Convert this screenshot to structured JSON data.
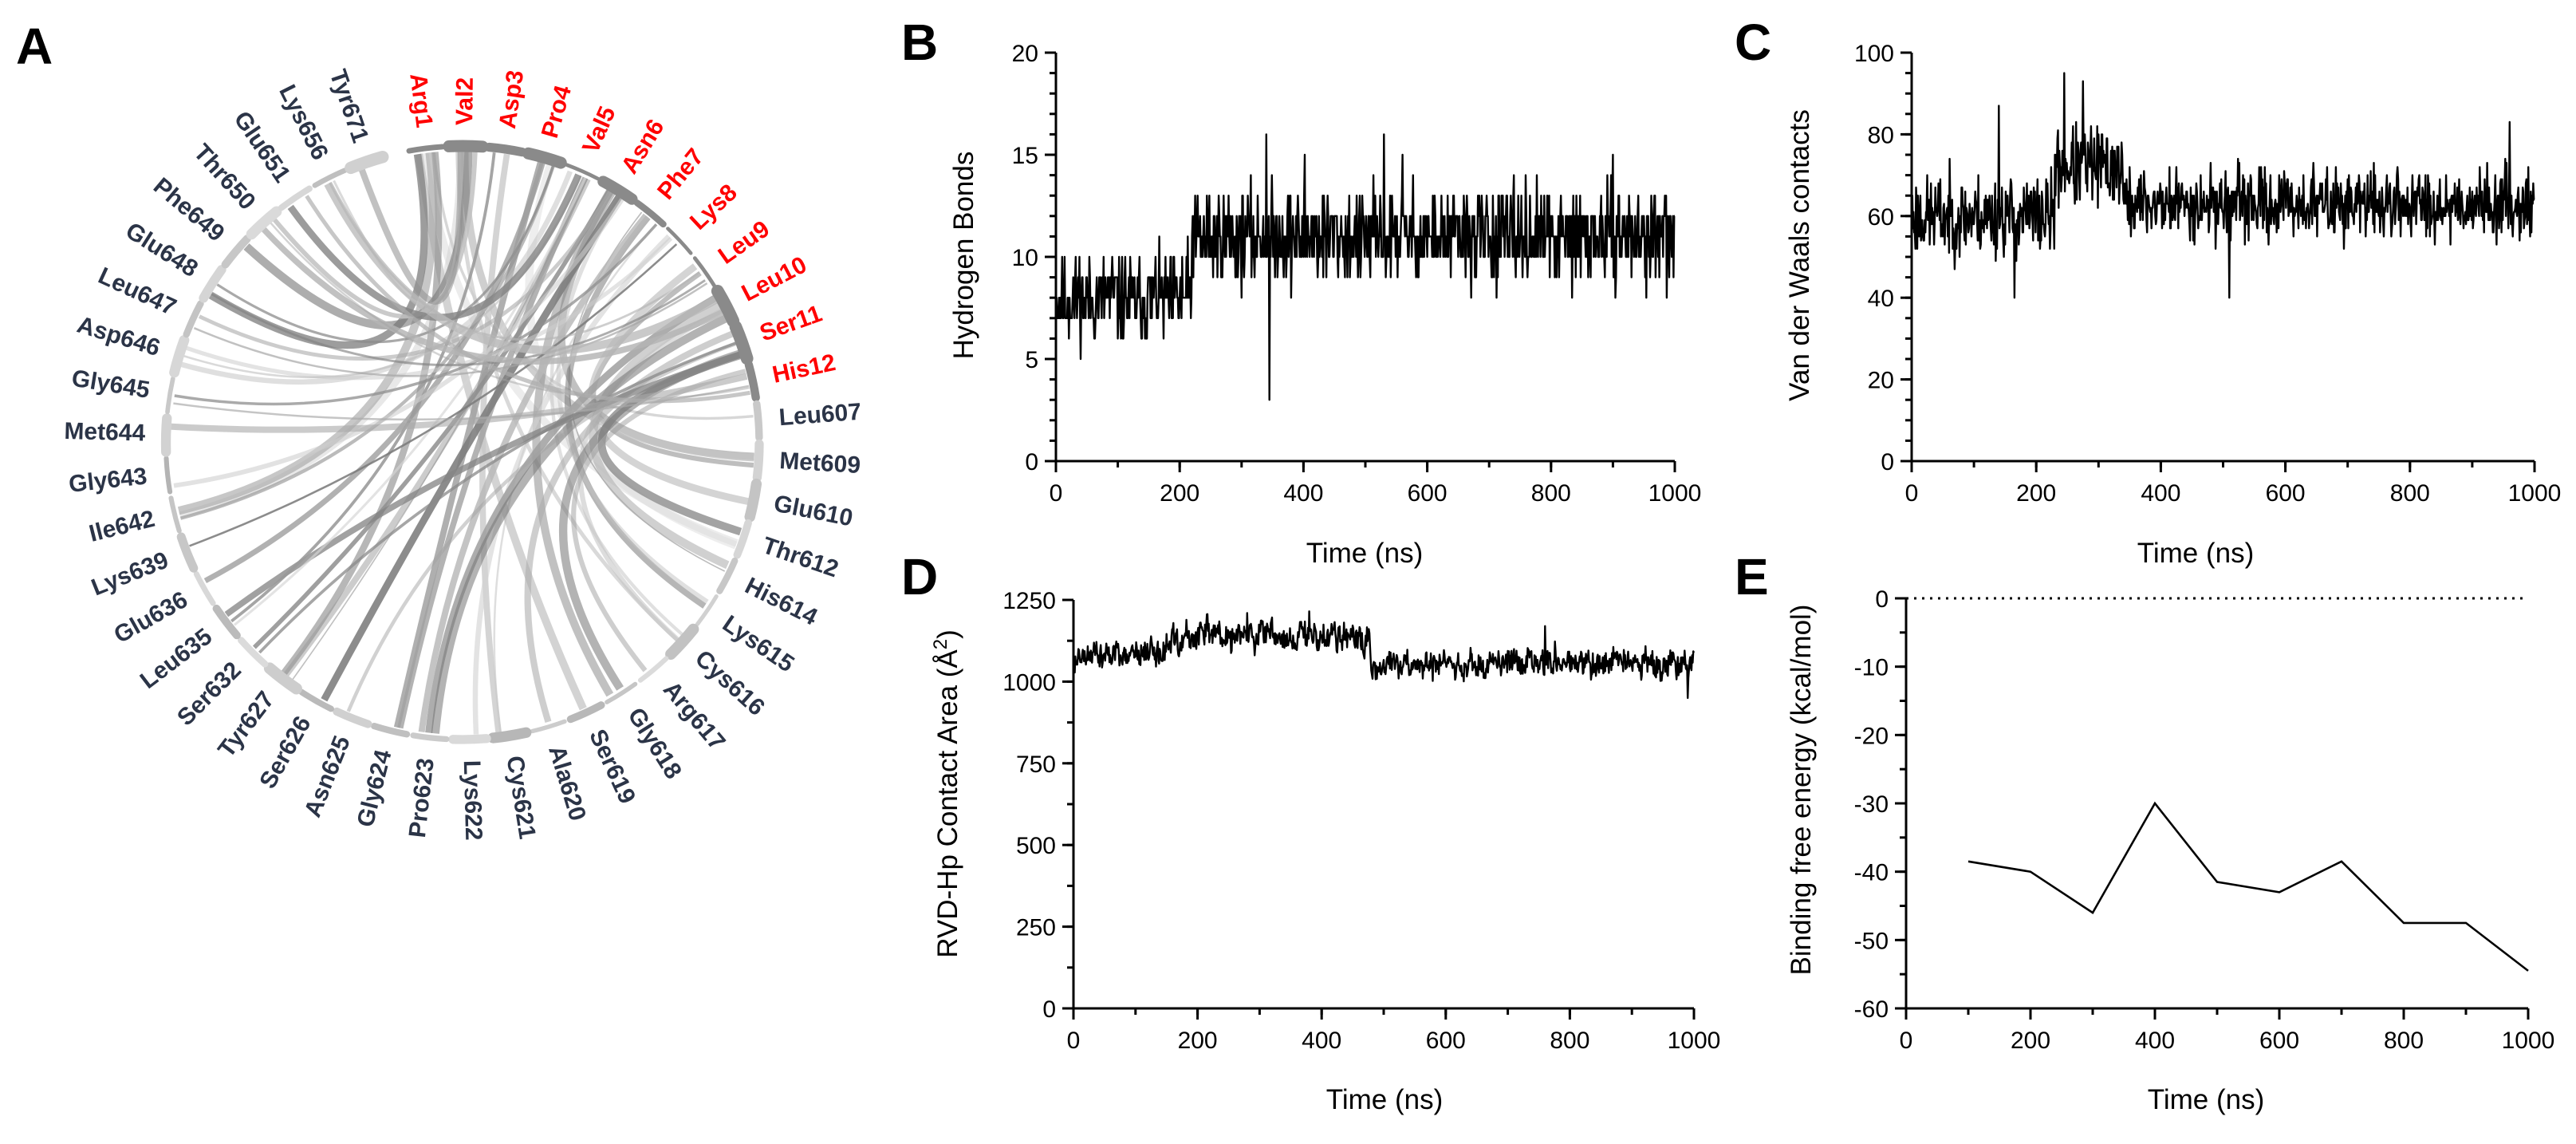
{
  "panel_labels": {
    "a": "A",
    "b": "B",
    "c": "C",
    "d": "D",
    "e": "E"
  },
  "colors": {
    "peptide": "#ff0000",
    "protein": "#2b3447",
    "chord": "#9a9a9a",
    "axis": "#000000"
  },
  "chart_data": [
    {
      "panel": "A",
      "type": "chord",
      "peptide_residues": [
        "Arg1",
        "Val2",
        "Asp3",
        "Pro4",
        "Val5",
        "Asn6",
        "Phe7",
        "Lys8",
        "Leu9",
        "Leu10",
        "Ser11",
        "His12"
      ],
      "protein_residues": [
        "Leu607",
        "Met609",
        "Glu610",
        "Thr612",
        "His614",
        "Lys615",
        "Cys616",
        "Arg617",
        "Gly618",
        "Ser619",
        "Ala620",
        "Cys621",
        "Lys622",
        "Pro623",
        "Gly624",
        "Asn625",
        "Ser626",
        "Tyr627",
        "Ser632",
        "Leu635",
        "Glu636",
        "Lys639",
        "Ile642",
        "Gly643",
        "Met644",
        "Gly645",
        "Asp646",
        "Leu647",
        "Glu648",
        "Phe649",
        "Thr650",
        "Glu651",
        "Lys656",
        "Tyr671"
      ]
    },
    {
      "panel": "B",
      "type": "line",
      "xlabel": "Time (ns)",
      "ylabel": "Hydrogen Bonds",
      "xlim": [
        0,
        1000
      ],
      "ylim": [
        0,
        20
      ],
      "xticks": [
        0,
        200,
        400,
        600,
        800,
        1000
      ],
      "yticks": [
        0,
        5,
        10,
        15,
        20
      ],
      "minor_y": 1,
      "minor_x": 100,
      "points": 1000,
      "phases": [
        [
          0,
          220,
          8,
          1.6
        ],
        [
          220,
          1000,
          11,
          1.6
        ]
      ],
      "spikes": [
        [
          340,
          16
        ],
        [
          345,
          3
        ],
        [
          402,
          15
        ],
        [
          530,
          16
        ],
        [
          560,
          15
        ],
        [
          900,
          15
        ]
      ],
      "integer": true,
      "seed": 11
    },
    {
      "panel": "C",
      "type": "line",
      "xlabel": "Time (ns)",
      "ylabel": "Van der Waals contacts",
      "xlim": [
        0,
        1000
      ],
      "ylim": [
        0,
        100
      ],
      "xticks": [
        0,
        200,
        400,
        600,
        800,
        1000
      ],
      "yticks": [
        0,
        20,
        40,
        60,
        80,
        100
      ],
      "minor_y": 5,
      "minor_x": 100,
      "points": 1000,
      "phases": [
        [
          0,
          230,
          60,
          7
        ],
        [
          230,
          340,
          72,
          7
        ],
        [
          340,
          1000,
          63,
          6
        ]
      ],
      "spikes": [
        [
          140,
          87
        ],
        [
          165,
          40
        ],
        [
          245,
          95
        ],
        [
          275,
          93
        ],
        [
          510,
          40
        ],
        [
          960,
          83
        ]
      ],
      "integer": true,
      "seed": 23
    },
    {
      "panel": "D",
      "type": "line",
      "xlabel": "Time (ns)",
      "ylabel": "RVD-Hp Contact Area (Å²)",
      "xlim": [
        0,
        1000
      ],
      "ylim": [
        0,
        1250
      ],
      "xticks": [
        0,
        200,
        400,
        600,
        800,
        1000
      ],
      "yticks": [
        0,
        250,
        500,
        750,
        1000,
        1250
      ],
      "minor_y": 125,
      "minor_x": 100,
      "points": 1000,
      "phases": [
        [
          0,
          150,
          1080,
          40
        ],
        [
          150,
          300,
          1140,
          40
        ],
        [
          300,
          480,
          1140,
          40
        ],
        [
          480,
          650,
          1050,
          40
        ],
        [
          650,
          1000,
          1060,
          35
        ]
      ],
      "spikes": [
        [
          280,
          1210
        ],
        [
          380,
          1215
        ],
        [
          760,
          1170
        ],
        [
          990,
          950
        ]
      ],
      "integer": false,
      "seed": 37
    },
    {
      "panel": "E",
      "type": "line",
      "xlabel": "Time (ns)",
      "ylabel": "Binding free energy (kcal/mol)",
      "xlim": [
        0,
        1000
      ],
      "ylim": [
        -60,
        0
      ],
      "xticks": [
        0,
        200,
        400,
        600,
        800,
        1000
      ],
      "yticks": [
        0,
        -10,
        -20,
        -30,
        -40,
        -50,
        -60
      ],
      "minor_y": 5,
      "minor_x": 100,
      "x": [
        100,
        200,
        300,
        400,
        500,
        600,
        700,
        800,
        900,
        1000
      ],
      "y": [
        -38.5,
        -40,
        -46,
        -30,
        -41.5,
        -43,
        -38.5,
        -47.5,
        -47.5,
        -54.5
      ],
      "reference_line": 0
    }
  ]
}
